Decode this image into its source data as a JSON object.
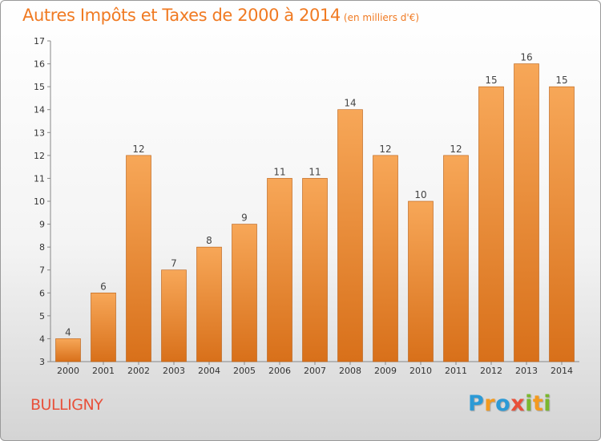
{
  "header": {
    "title": "Autres Impôts et Taxes de 2000 à 2014",
    "unit": "(en milliers d'€)"
  },
  "footer": {
    "commune": "BULLIGNY",
    "logo": [
      "P",
      "r",
      "o",
      "x",
      "i",
      "t",
      "i"
    ],
    "logo_colors": [
      "#2c9ad6",
      "#f39a1f",
      "#2c9ad6",
      "#e8503a",
      "#7ab72e",
      "#f39a1f",
      "#7ab72e"
    ]
  },
  "colors": {
    "title": "#f07a22",
    "bar_top": "#f7a758",
    "bar_bottom": "#d8701a",
    "bar_edge": "#b85d12"
  },
  "chart_data": {
    "type": "bar",
    "title": "Autres Impôts et Taxes de 2000 à 2014",
    "ylabel": "(en milliers d'€)",
    "categories": [
      "2000",
      "2001",
      "2002",
      "2003",
      "2004",
      "2005",
      "2006",
      "2007",
      "2008",
      "2009",
      "2010",
      "2011",
      "2012",
      "2013",
      "2014"
    ],
    "values": [
      4,
      6,
      12,
      7,
      8,
      9,
      11,
      11,
      14,
      12,
      10,
      12,
      15,
      16,
      15
    ],
    "ylim": [
      3,
      17
    ],
    "yticks": [
      3,
      4,
      5,
      6,
      7,
      8,
      9,
      10,
      11,
      12,
      13,
      14,
      15,
      16,
      17
    ],
    "grid": false,
    "legend": "none"
  }
}
